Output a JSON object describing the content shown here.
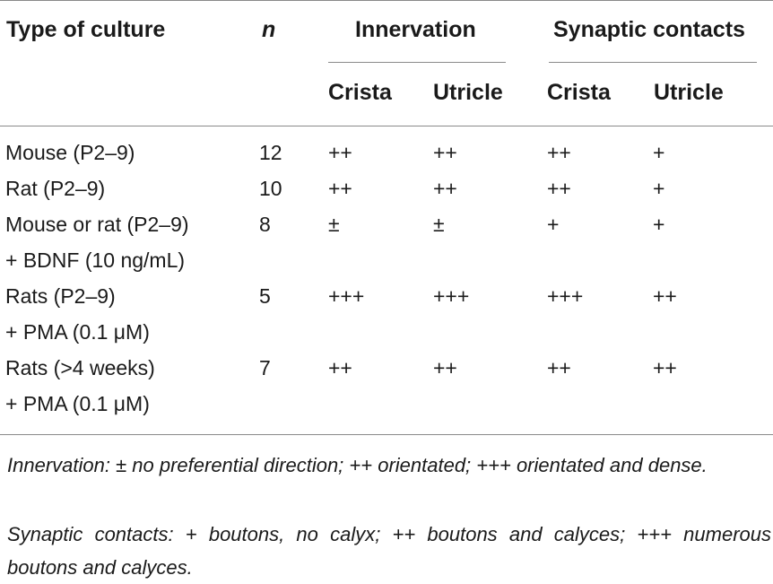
{
  "table": {
    "headers": {
      "type": "Type of culture",
      "n": "n",
      "innervation": "Innervation",
      "synaptic": "Synaptic contacts",
      "crista1": "Crista",
      "utricle1": "Utricle",
      "crista2": "Crista",
      "utricle2": "Utricle"
    },
    "rows": [
      {
        "type": [
          "Mouse (P2–9)"
        ],
        "n": "12",
        "inn_crista": "++",
        "inn_utricle": "++",
        "syn_crista": "++",
        "syn_utricle": "+"
      },
      {
        "type": [
          "Rat (P2–9)"
        ],
        "n": "10",
        "inn_crista": "++",
        "inn_utricle": "++",
        "syn_crista": "++",
        "syn_utricle": "+"
      },
      {
        "type": [
          "Mouse or rat (P2–9)",
          "+ BDNF (10 ng/mL)"
        ],
        "n": "8",
        "inn_crista": "±",
        "inn_utricle": "±",
        "syn_crista": "+",
        "syn_utricle": "+"
      },
      {
        "type": [
          "Rats (P2–9)",
          "+ PMA (0.1 μM)"
        ],
        "n": "5",
        "inn_crista": "+++",
        "inn_utricle": "+++",
        "syn_crista": "+++",
        "syn_utricle": "++"
      },
      {
        "type": [
          "Rats (>4 weeks)",
          "+ PMA (0.1 μM)"
        ],
        "n": "7",
        "inn_crista": "++",
        "inn_utricle": "++",
        "syn_crista": "++",
        "syn_utricle": "++"
      }
    ]
  },
  "footnotes": {
    "innervation": "Innervation: ± no preferential direction; ++ orientated; +++ orientated and dense.",
    "synaptic": "Synaptic contacts: + boutons, no calyx; ++ boutons and calyces; +++ numerous boutons and calyces."
  }
}
